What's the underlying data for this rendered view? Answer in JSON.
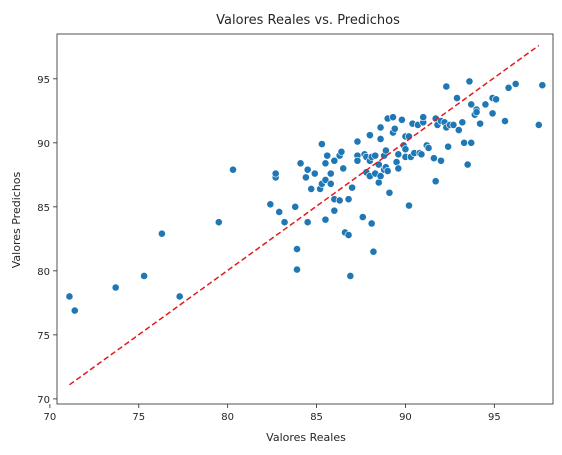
{
  "chart_data": {
    "type": "scatter",
    "title": "Valores Reales vs. Predichos",
    "xlabel": "Valores Reales",
    "ylabel": "Valores Predichos",
    "xlim": [
      70.4,
      98.3
    ],
    "ylim": [
      69.6,
      98.5
    ],
    "xticks": [
      70,
      75,
      80,
      85,
      90,
      95
    ],
    "yticks": [
      70,
      75,
      80,
      85,
      90,
      95
    ],
    "grid": false,
    "point_color": "#1f77b4",
    "reference_line": {
      "style": "dashed",
      "color": "#e41a1c",
      "from": [
        71.1,
        71.1
      ],
      "to": [
        97.5,
        97.6
      ]
    },
    "points": [
      [
        71.1,
        78.0
      ],
      [
        71.4,
        76.9
      ],
      [
        73.7,
        78.7
      ],
      [
        75.3,
        79.6
      ],
      [
        76.3,
        82.9
      ],
      [
        77.3,
        78.0
      ],
      [
        79.5,
        83.8
      ],
      [
        80.3,
        87.9
      ],
      [
        82.4,
        85.2
      ],
      [
        82.7,
        87.3
      ],
      [
        82.7,
        87.6
      ],
      [
        82.9,
        84.6
      ],
      [
        83.2,
        83.8
      ],
      [
        83.8,
        85.0
      ],
      [
        83.9,
        81.7
      ],
      [
        83.9,
        80.1
      ],
      [
        84.1,
        88.4
      ],
      [
        84.4,
        87.3
      ],
      [
        84.5,
        87.9
      ],
      [
        84.5,
        83.8
      ],
      [
        84.7,
        86.4
      ],
      [
        84.9,
        87.6
      ],
      [
        85.2,
        86.4
      ],
      [
        85.3,
        86.8
      ],
      [
        85.3,
        89.9
      ],
      [
        85.5,
        88.4
      ],
      [
        85.5,
        87.1
      ],
      [
        85.6,
        89.0
      ],
      [
        85.5,
        84.0
      ],
      [
        85.8,
        86.8
      ],
      [
        85.8,
        87.6
      ],
      [
        86.0,
        88.6
      ],
      [
        86.0,
        84.7
      ],
      [
        86.0,
        85.6
      ],
      [
        86.3,
        85.5
      ],
      [
        86.3,
        89.0
      ],
      [
        86.4,
        89.3
      ],
      [
        86.5,
        88.0
      ],
      [
        86.6,
        83.0
      ],
      [
        86.8,
        82.8
      ],
      [
        86.8,
        85.6
      ],
      [
        86.9,
        79.6
      ],
      [
        87.0,
        86.5
      ],
      [
        87.3,
        89.0
      ],
      [
        87.3,
        90.1
      ],
      [
        87.3,
        88.6
      ],
      [
        87.6,
        84.2
      ],
      [
        87.7,
        89.1
      ],
      [
        87.8,
        88.9
      ],
      [
        87.8,
        87.7
      ],
      [
        88.0,
        90.6
      ],
      [
        88.0,
        88.6
      ],
      [
        88.0,
        87.4
      ],
      [
        88.1,
        83.7
      ],
      [
        88.1,
        88.9
      ],
      [
        88.2,
        81.5
      ],
      [
        88.3,
        87.6
      ],
      [
        88.3,
        89.0
      ],
      [
        88.5,
        88.3
      ],
      [
        88.5,
        86.9
      ],
      [
        88.6,
        91.2
      ],
      [
        88.6,
        90.3
      ],
      [
        88.6,
        87.4
      ],
      [
        88.8,
        89.0
      ],
      [
        88.8,
        87.9
      ],
      [
        88.9,
        89.4
      ],
      [
        88.9,
        88.1
      ],
      [
        89.0,
        91.9
      ],
      [
        89.0,
        87.8
      ],
      [
        89.1,
        86.1
      ],
      [
        89.3,
        92.0
      ],
      [
        89.3,
        90.8
      ],
      [
        89.4,
        91.1
      ],
      [
        89.5,
        88.5
      ],
      [
        89.6,
        89.1
      ],
      [
        89.6,
        88.0
      ],
      [
        89.8,
        91.8
      ],
      [
        89.9,
        89.8
      ],
      [
        90.0,
        88.9
      ],
      [
        90.0,
        90.5
      ],
      [
        90.0,
        89.5
      ],
      [
        90.2,
        90.5
      ],
      [
        90.2,
        85.1
      ],
      [
        90.3,
        88.9
      ],
      [
        90.4,
        91.5
      ],
      [
        90.5,
        89.2
      ],
      [
        90.7,
        91.4
      ],
      [
        90.8,
        89.2
      ],
      [
        90.9,
        89.1
      ],
      [
        91.0,
        91.6
      ],
      [
        91.0,
        92.0
      ],
      [
        91.2,
        89.8
      ],
      [
        91.3,
        89.6
      ],
      [
        91.6,
        88.8
      ],
      [
        91.7,
        91.9
      ],
      [
        91.7,
        87.0
      ],
      [
        91.8,
        91.4
      ],
      [
        92.0,
        88.6
      ],
      [
        92.0,
        91.7
      ],
      [
        92.2,
        91.6
      ],
      [
        92.3,
        94.4
      ],
      [
        92.3,
        91.2
      ],
      [
        92.4,
        89.7
      ],
      [
        92.5,
        91.4
      ],
      [
        92.7,
        91.4
      ],
      [
        92.9,
        93.5
      ],
      [
        93.0,
        91.0
      ],
      [
        93.2,
        91.6
      ],
      [
        93.3,
        90.0
      ],
      [
        93.5,
        88.3
      ],
      [
        93.6,
        94.8
      ],
      [
        93.7,
        93.0
      ],
      [
        93.7,
        90.0
      ],
      [
        93.9,
        92.2
      ],
      [
        94.0,
        92.6
      ],
      [
        94.0,
        92.4
      ],
      [
        94.2,
        91.5
      ],
      [
        94.5,
        93.0
      ],
      [
        94.9,
        93.5
      ],
      [
        94.9,
        92.3
      ],
      [
        95.1,
        93.4
      ],
      [
        95.6,
        91.7
      ],
      [
        95.8,
        94.3
      ],
      [
        96.2,
        94.6
      ],
      [
        97.5,
        91.4
      ],
      [
        97.7,
        94.5
      ]
    ]
  }
}
